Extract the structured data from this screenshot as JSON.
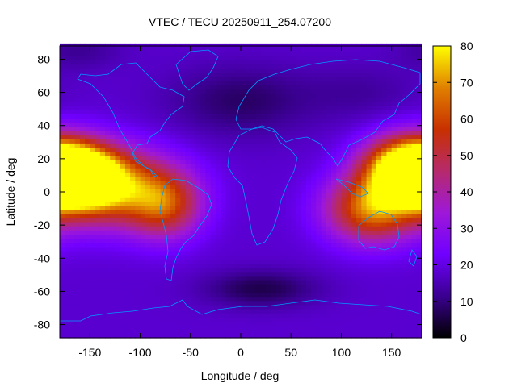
{
  "chart_data": {
    "type": "heatmap",
    "title": "VTEC / TECU 20250911_254.07200",
    "xlabel": "Longitude / deg",
    "ylabel": "Latitude / deg",
    "xlim": [
      -180,
      180
    ],
    "ylim": [
      -88,
      88
    ],
    "x_ticks": [
      -150,
      -100,
      -50,
      0,
      50,
      100,
      150
    ],
    "y_ticks": [
      80,
      60,
      40,
      20,
      0,
      -20,
      -40,
      -60,
      -80
    ],
    "colorbar": {
      "range": [
        0,
        80
      ],
      "ticks": [
        80,
        70,
        60,
        50,
        40,
        30,
        20,
        10,
        0
      ],
      "colors": [
        "#000000",
        "#3a0090",
        "#7000ff",
        "#9e18d8",
        "#b62a6c",
        "#c83000",
        "#e08000",
        "#ffff00"
      ]
    },
    "background_level": 18,
    "features": [
      {
        "lon": -165,
        "lat": 10,
        "value": 70,
        "slon": 30,
        "slat": 13
      },
      {
        "lon": -130,
        "lat": 3,
        "value": 47,
        "slon": 45,
        "slat": 16
      },
      {
        "lon": -75,
        "lat": -8,
        "value": 33,
        "slon": 25,
        "slat": 14
      },
      {
        "lon": 165,
        "lat": 15,
        "value": 62,
        "slon": 30,
        "slat": 13
      },
      {
        "lon": 130,
        "lat": -10,
        "value": 48,
        "slon": 32,
        "slat": 14
      },
      {
        "lon": 0,
        "lat": 55,
        "value": -10,
        "slon": 50,
        "slat": 15
      },
      {
        "lon": 20,
        "lat": -58,
        "value": -12,
        "slon": 40,
        "slat": 8
      },
      {
        "lon": -160,
        "lat": 85,
        "value": -6,
        "slon": 30,
        "slat": 8
      },
      {
        "lon": 120,
        "lat": 60,
        "value": -5,
        "slon": 40,
        "slat": 12
      }
    ],
    "coastline_color": "#0099ff"
  }
}
